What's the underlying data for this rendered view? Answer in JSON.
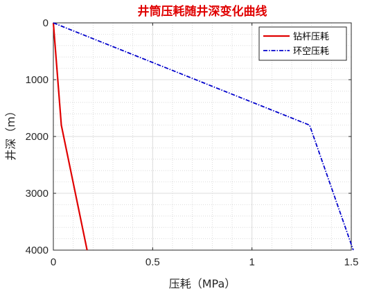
{
  "chart_data": {
    "type": "line",
    "title": "井筒压耗随井深变化曲线",
    "xlabel": "压耗（MPa）",
    "ylabel": "井深（m）",
    "xlim": [
      0,
      1.5
    ],
    "ylim": [
      0,
      4000
    ],
    "y_reversed": true,
    "x_ticks": [
      0,
      0.5,
      1,
      1.5
    ],
    "x_tick_labels": [
      "0",
      "0.5",
      "1",
      "1.5"
    ],
    "y_ticks": [
      0,
      1000,
      2000,
      3000,
      4000
    ],
    "y_tick_labels": [
      "0",
      "1000",
      "2000",
      "3000",
      "4000"
    ],
    "grid": "major-and-minor",
    "legend_position": "top-right",
    "series": [
      {
        "name": "钻杆压耗",
        "color": "#e00000",
        "line_style": "solid",
        "x": [
          0,
          0.04,
          0.17
        ],
        "y": [
          0,
          1800,
          4000
        ]
      },
      {
        "name": "环空压耗",
        "color": "#0000cc",
        "line_style": "dash-dot",
        "x": [
          0,
          1.29,
          1.51
        ],
        "y": [
          0,
          1800,
          4000
        ]
      }
    ]
  }
}
